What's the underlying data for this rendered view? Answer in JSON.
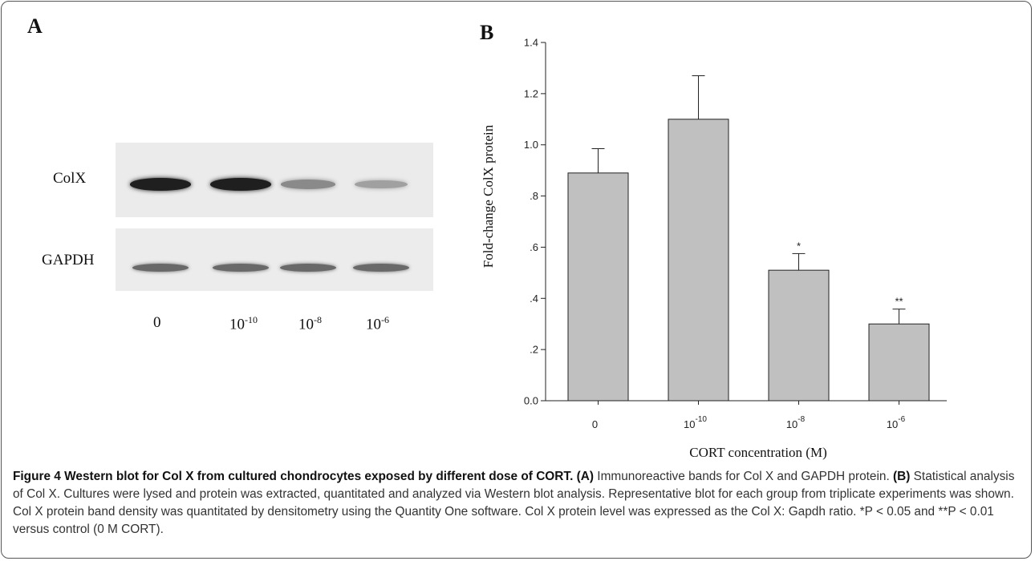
{
  "panelA": {
    "letter": "A",
    "row_labels": [
      "ColX",
      "GAPDH"
    ],
    "lanes": [
      {
        "base": "0",
        "exp": ""
      },
      {
        "base": "10",
        "exp": "-10"
      },
      {
        "base": "10",
        "exp": "-8"
      },
      {
        "base": "10",
        "exp": "-6"
      }
    ],
    "colx_band_intensity": [
      0.95,
      0.95,
      0.45,
      0.35
    ],
    "gapdh_band_intensity": [
      0.65,
      0.65,
      0.65,
      0.65
    ]
  },
  "panelB": {
    "letter": "B"
  },
  "chart_data": {
    "type": "bar",
    "categories": [
      "0",
      "10^-10",
      "10^-8",
      "10^-6"
    ],
    "category_labels": [
      {
        "base": "0",
        "exp": ""
      },
      {
        "base": "10",
        "exp": "-10"
      },
      {
        "base": "10",
        "exp": "-8"
      },
      {
        "base": "10",
        "exp": "-6"
      }
    ],
    "values": [
      0.89,
      1.1,
      0.51,
      0.3
    ],
    "errors": [
      0.095,
      0.17,
      0.065,
      0.058
    ],
    "significance": [
      "",
      "",
      "*",
      "**"
    ],
    "ylabel": "Fold-change ColX protein",
    "xlabel": "CORT concentration (M)",
    "ylim": [
      0,
      1.4
    ],
    "yticks": [
      {
        "value": 0.0,
        "label": "0.0"
      },
      {
        "value": 0.2,
        "label": ".2"
      },
      {
        "value": 0.4,
        "label": ".4"
      },
      {
        "value": 0.6,
        "label": ".6"
      },
      {
        "value": 0.8,
        "label": ".8"
      },
      {
        "value": 1.0,
        "label": "1.0"
      },
      {
        "value": 1.2,
        "label": "1.2"
      },
      {
        "value": 1.4,
        "label": "1.4"
      }
    ],
    "bar_color": "#c0c0c0",
    "grid": false
  },
  "caption": {
    "title": "Figure 4 Western blot for Col X from cultured chondrocytes exposed by different dose of CORT.",
    "partA_tag": "(A)",
    "partA_text": " Immunoreactive bands for Col X and GAPDH protein. ",
    "partB_tag": "(B)",
    "partB_text": " Statistical analysis of Col X. Cultures were lysed and protein was extracted, quantitated and analyzed via Western blot analysis. Representative blot for each group from triplicate experiments was shown. Col X protein band density was quantitated by densitometry using the Quantity One software. Col X protein level was expressed as the Col X: Gapdh ratio. *P < 0.05 and **P < 0.01 versus control (0 M CORT)."
  }
}
